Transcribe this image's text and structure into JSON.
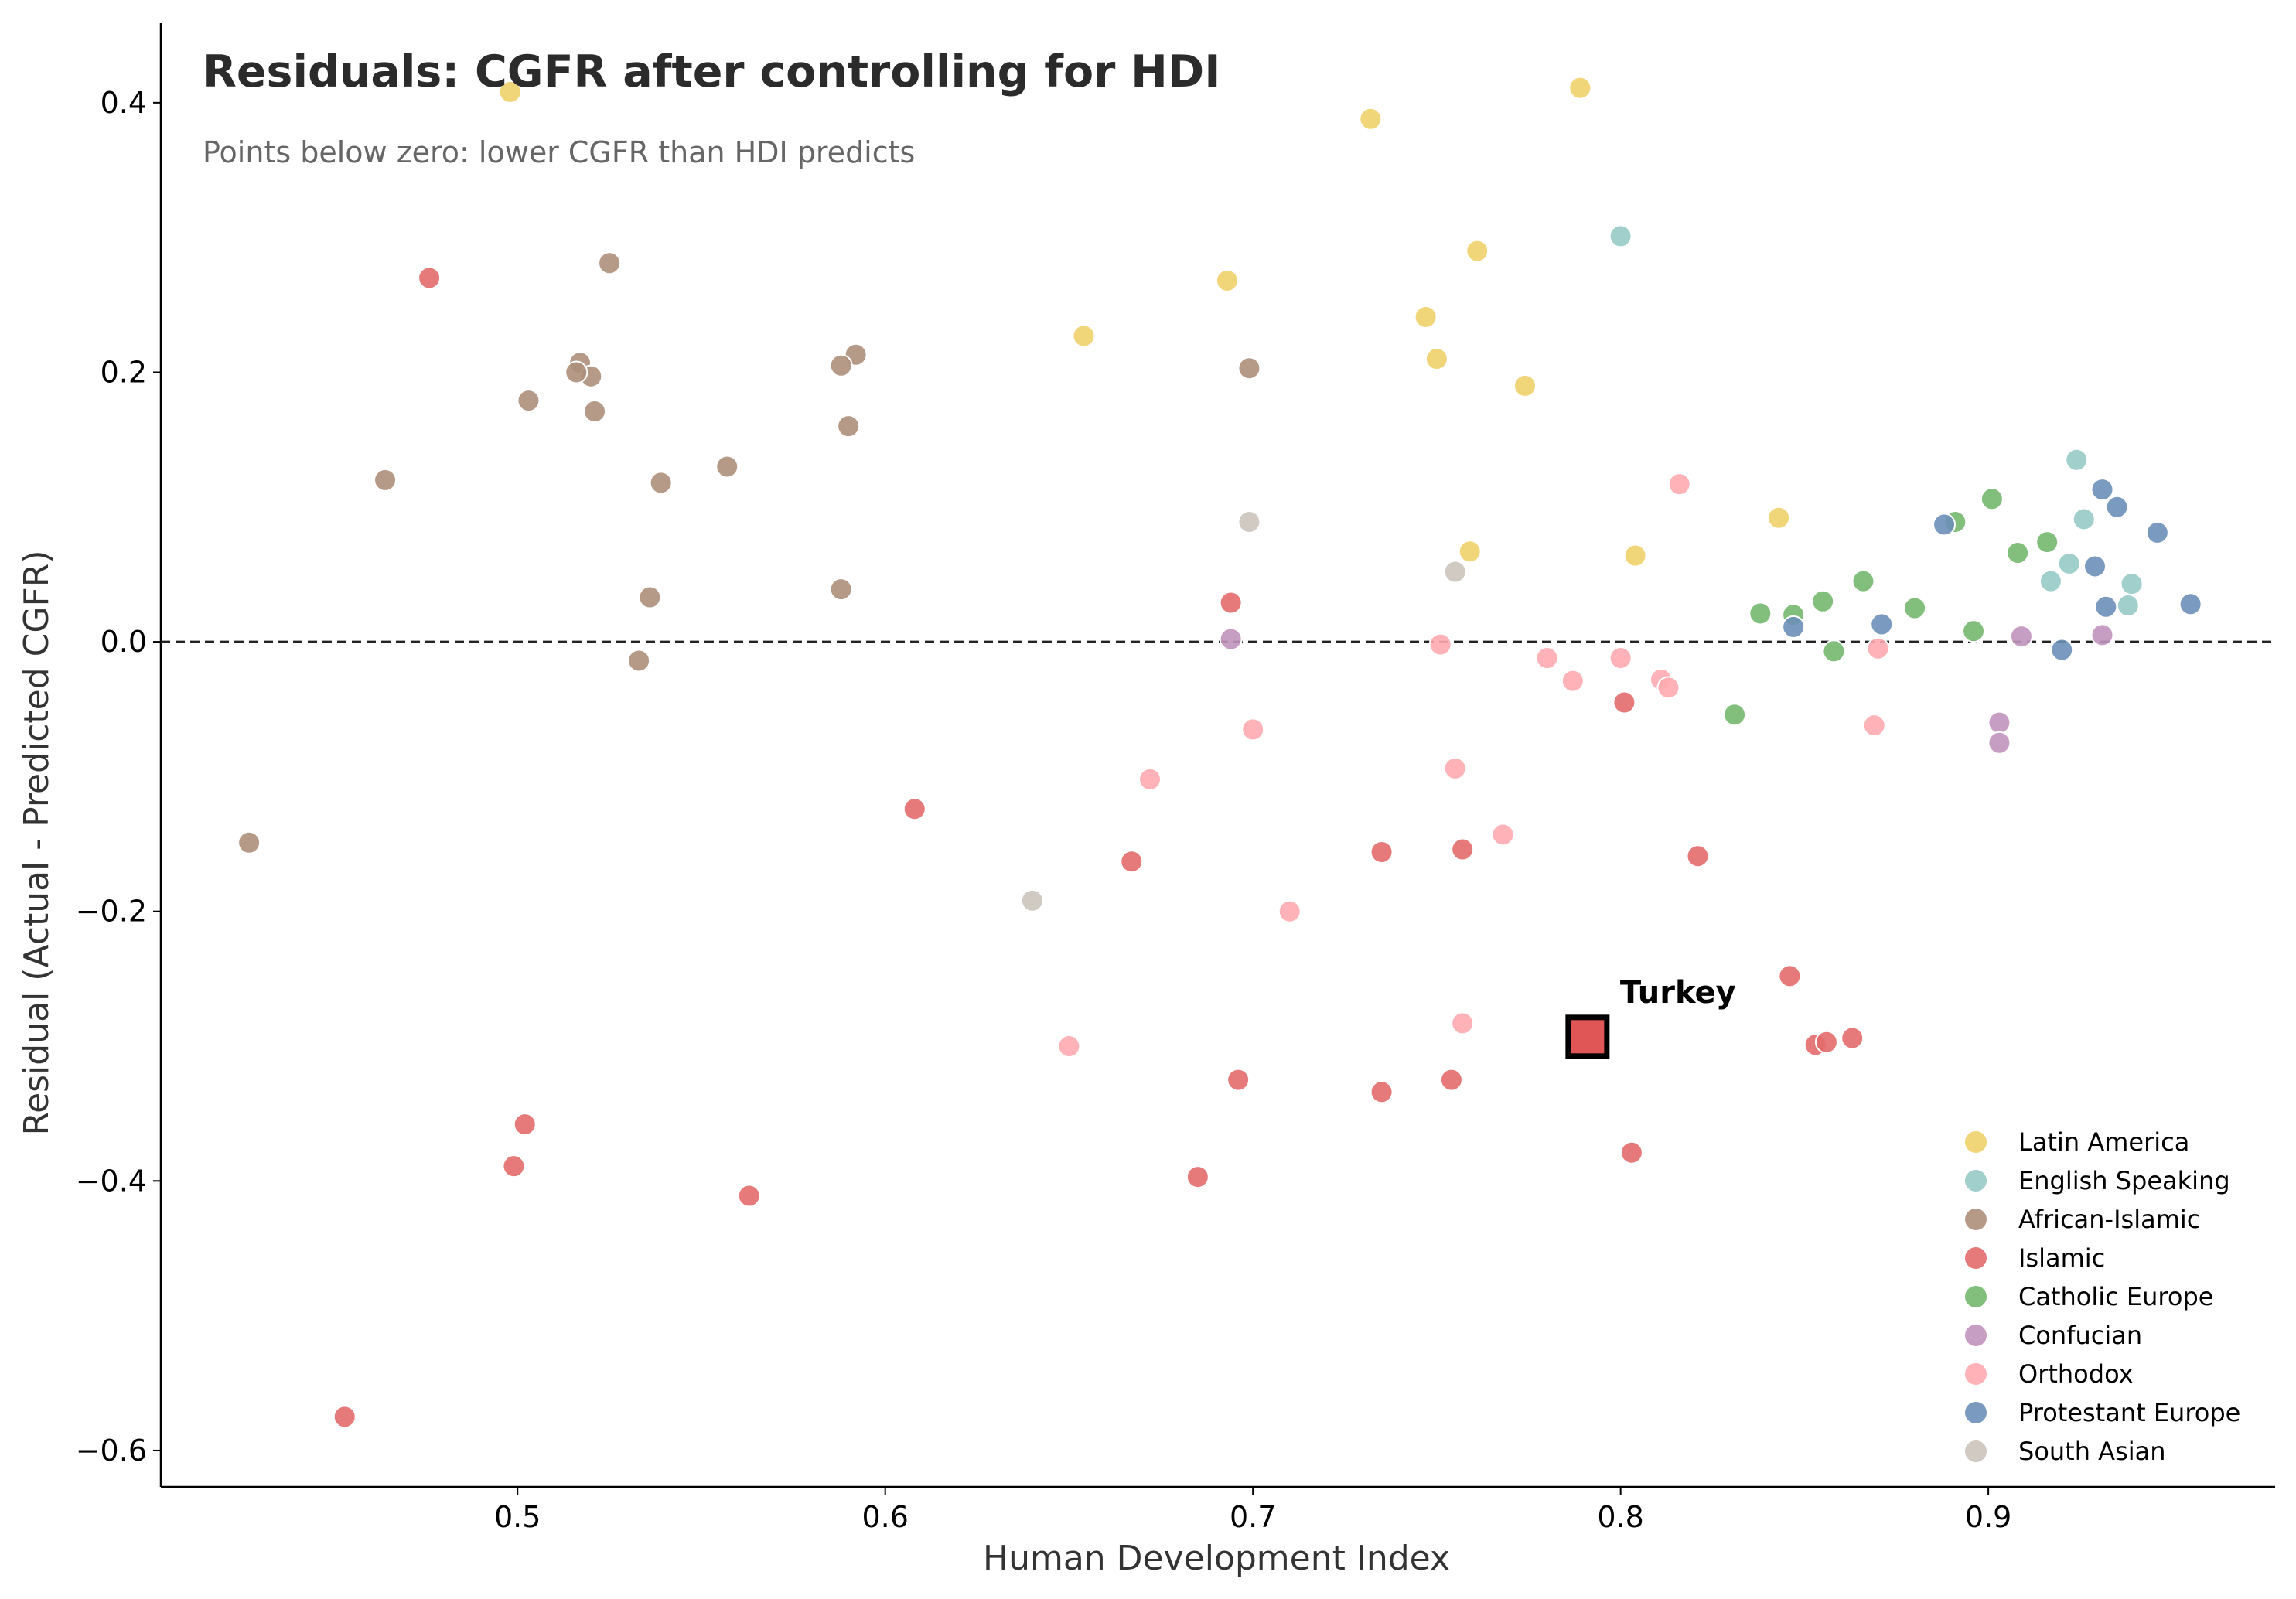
{
  "chart_data": {
    "type": "scatter",
    "title": "Residuals: CGFR after controlling for HDI",
    "subtitle": "Points below zero: lower CGFR than HDI predicts",
    "xlabel": "Human Development Index",
    "ylabel": "Residual (Actual - Predicted CGFR)",
    "xlim": [
      0.403,
      0.978
    ],
    "ylim": [
      -0.627,
      0.459
    ],
    "xticks": [
      0.5,
      0.6,
      0.7,
      0.8,
      0.9
    ],
    "xtick_labels": [
      "0.5",
      "0.6",
      "0.7",
      "0.8",
      "0.9"
    ],
    "yticks": [
      0.4,
      0.2,
      0.0,
      -0.2,
      -0.4,
      -0.6
    ],
    "ytick_labels": [
      "0.4",
      "0.2",
      "0.0",
      "−0.2",
      "−0.4",
      "−0.6"
    ],
    "reference_line": 0,
    "grid": false,
    "legend_position": "bottom-right",
    "series": [
      {
        "name": "Latin America",
        "color": "#f0d26a",
        "points": [
          [
            0.498,
            0.408
          ],
          [
            0.789,
            0.411
          ],
          [
            0.732,
            0.388
          ],
          [
            0.693,
            0.268
          ],
          [
            0.761,
            0.29
          ],
          [
            0.747,
            0.241
          ],
          [
            0.654,
            0.227
          ],
          [
            0.75,
            0.21
          ],
          [
            0.774,
            0.19
          ],
          [
            0.759,
            0.067
          ],
          [
            0.843,
            0.092
          ],
          [
            0.804,
            0.064
          ]
        ]
      },
      {
        "name": "English Speaking",
        "color": "#97cbc6",
        "points": [
          [
            0.8,
            0.301
          ],
          [
            0.924,
            0.135
          ],
          [
            0.926,
            0.091
          ],
          [
            0.922,
            0.058
          ],
          [
            0.917,
            0.045
          ],
          [
            0.939,
            0.043
          ],
          [
            0.938,
            0.027
          ]
        ]
      },
      {
        "name": "African-Islamic",
        "color": "#ad8f7b",
        "points": [
          [
            0.525,
            0.281
          ],
          [
            0.517,
            0.207
          ],
          [
            0.52,
            0.197
          ],
          [
            0.516,
            0.2
          ],
          [
            0.503,
            0.179
          ],
          [
            0.521,
            0.171
          ],
          [
            0.592,
            0.213
          ],
          [
            0.588,
            0.205
          ],
          [
            0.699,
            0.203
          ],
          [
            0.59,
            0.16
          ],
          [
            0.464,
            0.12
          ],
          [
            0.539,
            0.118
          ],
          [
            0.557,
            0.13
          ],
          [
            0.536,
            0.033
          ],
          [
            0.588,
            0.039
          ],
          [
            0.533,
            -0.014
          ],
          [
            0.427,
            -0.149
          ]
        ]
      },
      {
        "name": "Islamic",
        "color": "#e36a6a",
        "points": [
          [
            0.476,
            0.27
          ],
          [
            0.694,
            0.029
          ],
          [
            0.801,
            -0.045
          ],
          [
            0.608,
            -0.124
          ],
          [
            0.667,
            -0.163
          ],
          [
            0.735,
            -0.156
          ],
          [
            0.757,
            -0.154
          ],
          [
            0.821,
            -0.159
          ],
          [
            0.846,
            -0.248
          ],
          [
            0.853,
            -0.299
          ],
          [
            0.856,
            -0.297
          ],
          [
            0.863,
            -0.294
          ],
          [
            0.696,
            -0.325
          ],
          [
            0.735,
            -0.334
          ],
          [
            0.754,
            -0.325
          ],
          [
            0.502,
            -0.358
          ],
          [
            0.499,
            -0.389
          ],
          [
            0.685,
            -0.397
          ],
          [
            0.803,
            -0.379
          ],
          [
            0.563,
            -0.411
          ],
          [
            0.453,
            -0.575
          ]
        ]
      },
      {
        "name": "Catholic Europe",
        "color": "#76b86e",
        "points": [
          [
            0.901,
            0.106
          ],
          [
            0.891,
            0.089
          ],
          [
            0.916,
            0.074
          ],
          [
            0.908,
            0.066
          ],
          [
            0.866,
            0.045
          ],
          [
            0.855,
            0.03
          ],
          [
            0.88,
            0.025
          ],
          [
            0.838,
            0.021
          ],
          [
            0.847,
            0.02
          ],
          [
            0.896,
            0.008
          ],
          [
            0.858,
            -0.007
          ],
          [
            0.831,
            -0.054
          ]
        ]
      },
      {
        "name": "Confucian",
        "color": "#c194bd",
        "points": [
          [
            0.694,
            0.002
          ],
          [
            0.909,
            0.004
          ],
          [
            0.931,
            0.005
          ],
          [
            0.903,
            -0.06
          ],
          [
            0.903,
            -0.075
          ]
        ]
      },
      {
        "name": "Orthodox",
        "color": "#ffabb0",
        "points": [
          [
            0.816,
            0.117
          ],
          [
            0.751,
            -0.002
          ],
          [
            0.87,
            -0.005
          ],
          [
            0.78,
            -0.012
          ],
          [
            0.8,
            -0.012
          ],
          [
            0.787,
            -0.029
          ],
          [
            0.811,
            -0.028
          ],
          [
            0.813,
            -0.034
          ],
          [
            0.7,
            -0.065
          ],
          [
            0.869,
            -0.062
          ],
          [
            0.755,
            -0.094
          ],
          [
            0.672,
            -0.102
          ],
          [
            0.768,
            -0.143
          ],
          [
            0.71,
            -0.2
          ],
          [
            0.65,
            -0.3
          ],
          [
            0.757,
            -0.283
          ]
        ]
      },
      {
        "name": "Protestant Europe",
        "color": "#6b8fb8",
        "points": [
          [
            0.931,
            0.113
          ],
          [
            0.935,
            0.1
          ],
          [
            0.888,
            0.087
          ],
          [
            0.946,
            0.081
          ],
          [
            0.929,
            0.056
          ],
          [
            0.932,
            0.026
          ],
          [
            0.955,
            0.028
          ],
          [
            0.847,
            0.011
          ],
          [
            0.871,
            0.013
          ],
          [
            0.92,
            -0.006
          ]
        ]
      },
      {
        "name": "South Asian",
        "color": "#cbc4bd",
        "points": [
          [
            0.699,
            0.089
          ],
          [
            0.755,
            0.052
          ],
          [
            0.64,
            -0.192
          ]
        ]
      }
    ],
    "highlight": {
      "label": "Turkey",
      "x": 0.791,
      "y": -0.293,
      "color": "#e05555"
    }
  }
}
